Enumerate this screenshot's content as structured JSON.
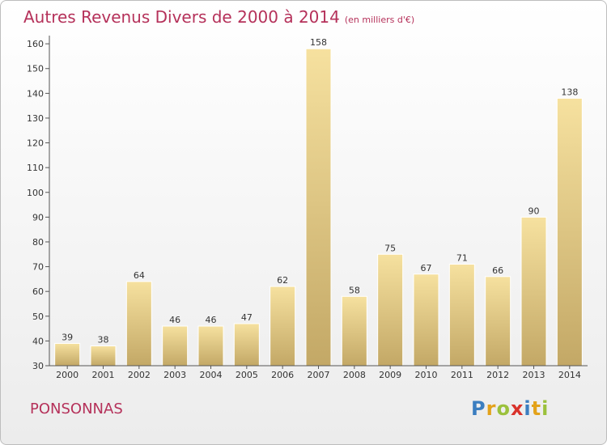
{
  "header": {
    "title": "Autres Revenus Divers de 2000 à 2014",
    "unit": "(en milliers d'€)"
  },
  "footer": {
    "place": "PONSONNAS",
    "logo": {
      "letters": [
        "P",
        "r",
        "o",
        "x",
        "i",
        "t",
        "i"
      ],
      "colors": [
        "#3b7ec0",
        "#e3a21a",
        "#9bc13c",
        "#d9322b",
        "#3b7ec0",
        "#e3a21a",
        "#9bc13c"
      ]
    }
  },
  "chart_data": {
    "type": "bar",
    "categories": [
      "2000",
      "2001",
      "2002",
      "2003",
      "2004",
      "2005",
      "2006",
      "2007",
      "2008",
      "2009",
      "2010",
      "2011",
      "2012",
      "2013",
      "2014"
    ],
    "values": [
      39,
      38,
      64,
      46,
      46,
      47,
      62,
      158,
      58,
      75,
      67,
      71,
      66,
      90,
      138
    ],
    "ylim": [
      30,
      162
    ],
    "yticks": [
      30,
      40,
      50,
      60,
      70,
      80,
      90,
      100,
      110,
      120,
      130,
      140,
      150,
      160
    ],
    "grid": false,
    "colors": {
      "bar_light": "#f6e19f",
      "bar_dark": "#c3a866",
      "axis": "#555555"
    }
  }
}
